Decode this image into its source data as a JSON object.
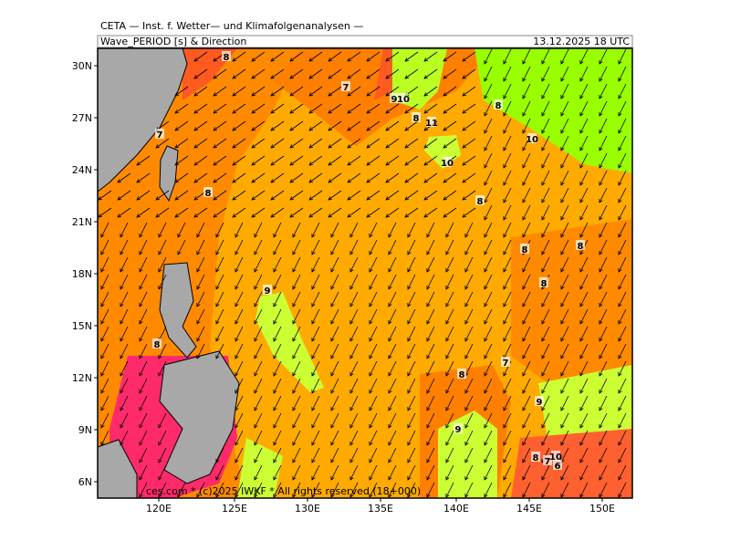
{
  "header": {
    "title": "CETA — Inst. f. Wetter— und Klimafolgenanalysen —",
    "subtitle": "Wave_PERIOD [s] & Direction",
    "valid_time": "13.12.2025 18 UTC"
  },
  "map": {
    "lat_labels": [
      "30N",
      "27N",
      "24N",
      "21N",
      "18N",
      "15N",
      "12N",
      "9N",
      "6N"
    ],
    "lon_labels": [
      "120E",
      "125E",
      "130E",
      "135E",
      "140E",
      "145E",
      "150E"
    ],
    "contour_labels": [
      "8",
      "7",
      "9",
      "10",
      "8",
      "11",
      "8",
      "10",
      "7",
      "10",
      "8",
      "8",
      "8",
      "8",
      "8",
      "9",
      "8",
      "7",
      "8",
      "9",
      "9",
      "8",
      "7",
      "10",
      "6"
    ],
    "footer": "ces.com * (c)2025 IWKF * All rights reserved (18+000)"
  }
}
